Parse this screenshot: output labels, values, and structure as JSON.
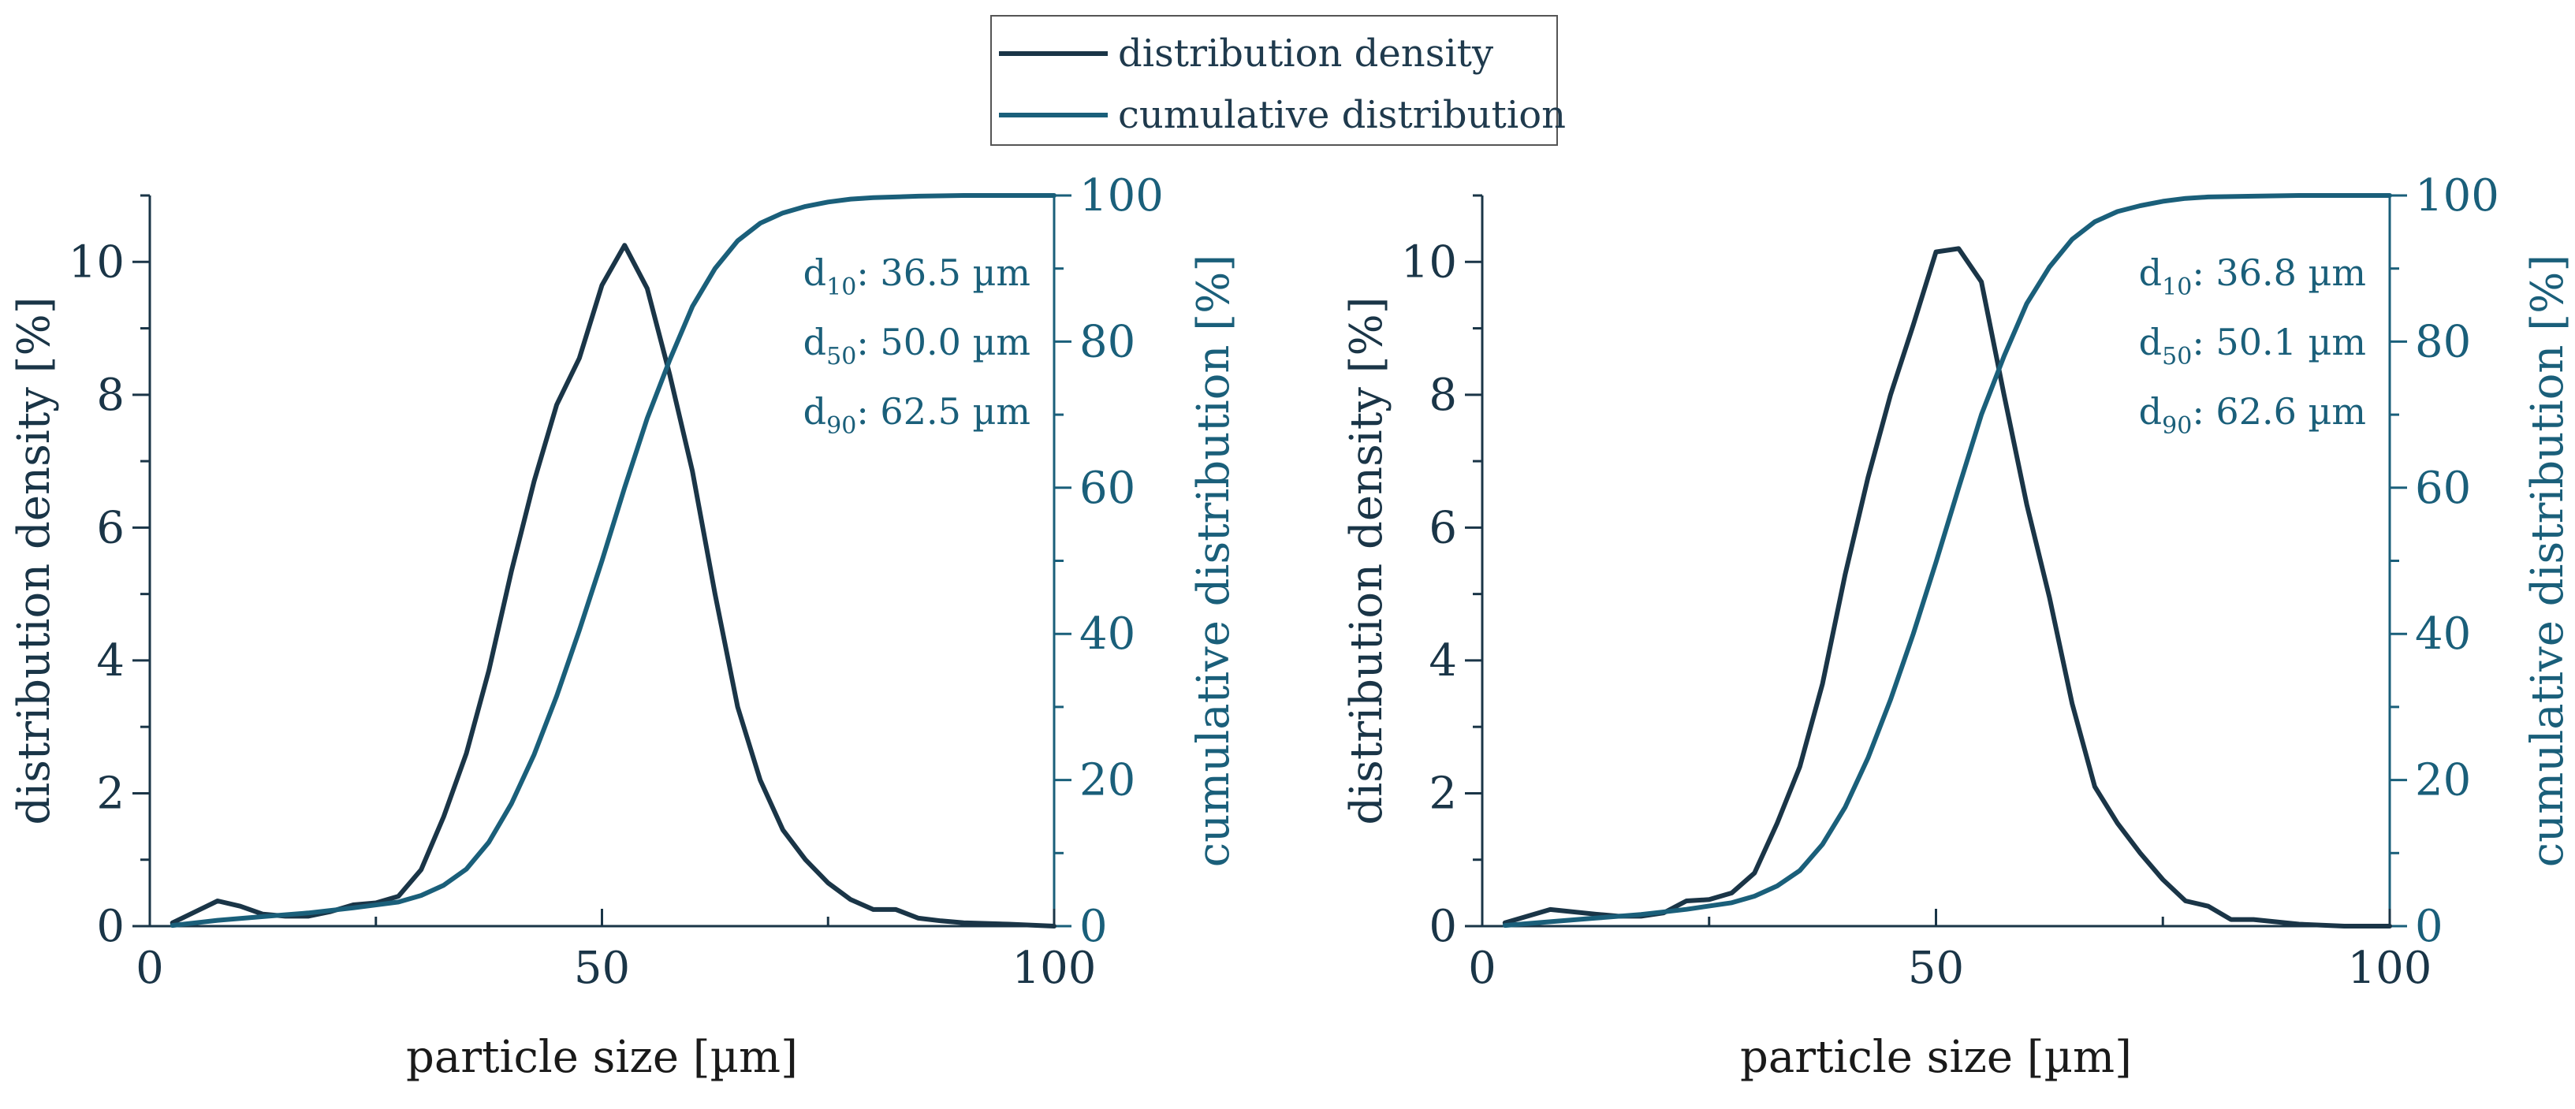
{
  "legend": {
    "items": [
      {
        "label": "distribution density",
        "color": "#1a3547"
      },
      {
        "label": "cumulative distribution",
        "color": "#1a5f7a"
      }
    ]
  },
  "chart_data": [
    {
      "type": "line",
      "xlabel": "particle size [µm]",
      "ylabel_left": "distribution density [%]",
      "ylabel_right": "cumulative distribution [%]",
      "xlim": [
        0,
        100
      ],
      "ylim_left": [
        0,
        11
      ],
      "ylim_right": [
        0,
        100
      ],
      "x_ticks": [
        "0",
        "50",
        "100"
      ],
      "y_left_ticks": [
        "0",
        "2",
        "4",
        "6",
        "8",
        "10"
      ],
      "y_right_ticks": [
        "0",
        "20",
        "40",
        "60",
        "80",
        "100"
      ],
      "grid": false,
      "annotations": [
        {
          "base": "d",
          "sub": "10",
          "text": ": 36.5 µm"
        },
        {
          "base": "d",
          "sub": "50",
          "text": ": 50.0 µm"
        },
        {
          "base": "d",
          "sub": "90",
          "text": ": 62.5 µm"
        }
      ],
      "series": [
        {
          "name": "distribution density",
          "axis": "left",
          "x": [
            2.5,
            7.5,
            10,
            12.5,
            15,
            17.5,
            20,
            22.5,
            25,
            27.5,
            30,
            32.5,
            35,
            37.5,
            40,
            42.5,
            45,
            47.5,
            50,
            52.5,
            55,
            57.5,
            60,
            62.5,
            65,
            67.5,
            70,
            72.5,
            75,
            77.5,
            80,
            82.5,
            85,
            87.5,
            90,
            95,
            100
          ],
          "y": [
            0.05,
            0.38,
            0.3,
            0.18,
            0.15,
            0.15,
            0.22,
            0.32,
            0.35,
            0.45,
            0.85,
            1.65,
            2.6,
            3.85,
            5.35,
            6.7,
            7.85,
            8.55,
            9.65,
            10.25,
            9.6,
            8.3,
            6.85,
            5.0,
            3.3,
            2.2,
            1.45,
            1.0,
            0.65,
            0.4,
            0.25,
            0.25,
            0.12,
            0.08,
            0.05,
            0.03,
            0.0
          ]
        },
        {
          "name": "cumulative distribution",
          "axis": "right",
          "x": [
            2.5,
            7.5,
            12.5,
            17.5,
            22.5,
            27.5,
            30,
            32.5,
            35,
            37.5,
            40,
            42.5,
            45,
            47.5,
            50,
            52.5,
            55,
            57.5,
            60,
            62.5,
            65,
            67.5,
            70,
            72.5,
            75,
            77.5,
            80,
            85,
            90,
            95,
            100
          ],
          "y": [
            0.1,
            0.8,
            1.3,
            1.8,
            2.5,
            3.3,
            4.2,
            5.6,
            7.8,
            11.5,
            16.8,
            23.5,
            31.5,
            40.5,
            50.0,
            60.0,
            69.5,
            77.5,
            84.8,
            90.0,
            93.8,
            96.2,
            97.6,
            98.5,
            99.1,
            99.5,
            99.7,
            99.9,
            100,
            100,
            100
          ]
        }
      ]
    },
    {
      "type": "line",
      "xlabel": "particle size [µm]",
      "ylabel_left": "distribution density [%]",
      "ylabel_right": "cumulative distribution [%]",
      "xlim": [
        0,
        100
      ],
      "ylim_left": [
        0,
        11
      ],
      "ylim_right": [
        0,
        100
      ],
      "x_ticks": [
        "0",
        "50",
        "100"
      ],
      "y_left_ticks": [
        "0",
        "2",
        "4",
        "6",
        "8",
        "10"
      ],
      "y_right_ticks": [
        "0",
        "20",
        "40",
        "60",
        "80",
        "100"
      ],
      "grid": false,
      "annotations": [
        {
          "base": "d",
          "sub": "10",
          "text": ": 36.8 µm"
        },
        {
          "base": "d",
          "sub": "50",
          "text": ": 50.1 µm"
        },
        {
          "base": "d",
          "sub": "90",
          "text": ": 62.6 µm"
        }
      ],
      "series": [
        {
          "name": "distribution density",
          "axis": "left",
          "x": [
            2.5,
            7.5,
            12.5,
            15,
            17.5,
            20,
            22.5,
            25,
            27.5,
            30,
            32.5,
            35,
            37.5,
            40,
            42.5,
            45,
            47.5,
            50,
            52.5,
            55,
            57.5,
            60,
            62.5,
            65,
            67.5,
            70,
            72.5,
            75,
            77.5,
            80,
            82.5,
            85,
            90,
            95,
            100
          ],
          "y": [
            0.05,
            0.25,
            0.18,
            0.15,
            0.15,
            0.2,
            0.38,
            0.4,
            0.5,
            0.8,
            1.55,
            2.4,
            3.65,
            5.3,
            6.75,
            8.0,
            9.05,
            10.15,
            10.2,
            9.7,
            8.0,
            6.35,
            4.95,
            3.35,
            2.1,
            1.55,
            1.1,
            0.7,
            0.38,
            0.3,
            0.1,
            0.1,
            0.03,
            0.0,
            0.0
          ]
        },
        {
          "name": "cumulative distribution",
          "axis": "right",
          "x": [
            2.5,
            7.5,
            12.5,
            17.5,
            22.5,
            27.5,
            30,
            32.5,
            35,
            37.5,
            40,
            42.5,
            45,
            47.5,
            50,
            52.5,
            55,
            57.5,
            60,
            62.5,
            65,
            67.5,
            70,
            72.5,
            75,
            77.5,
            80,
            85,
            90,
            95,
            100
          ],
          "y": [
            0.1,
            0.6,
            1.1,
            1.6,
            2.3,
            3.2,
            4.1,
            5.5,
            7.6,
            11.2,
            16.3,
            23.0,
            31.0,
            40.0,
            49.8,
            60.0,
            70.0,
            78.0,
            85.2,
            90.2,
            94.0,
            96.4,
            97.8,
            98.6,
            99.2,
            99.6,
            99.8,
            99.9,
            100,
            100,
            100
          ]
        }
      ]
    }
  ]
}
